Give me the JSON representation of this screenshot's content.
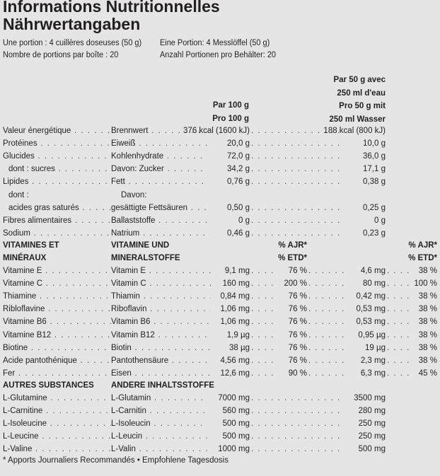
{
  "title_fr": "Informations Nutritionnelles",
  "title_de": "Nährwertangaben",
  "serving": {
    "fr_portion": "Une portion : 4 cuillères doseuses (50 g)",
    "de_portion": "Eine Portion: 4 Messlöffel (50 g)",
    "fr_count": "Nombre de portions par boîte : 20",
    "de_count": "Anzahl Portionen pro Behälter: 20"
  },
  "headers": {
    "per100": [
      "Par 100 g",
      "Pro 100 g"
    ],
    "per50": [
      "Par 50 g avec",
      "250 ml d'eau",
      "Pro 50 g mit",
      "250 ml Wasser"
    ]
  },
  "nutrients": [
    {
      "fr": "Valeur énergétique",
      "de": "Brennwert",
      "v100": "376 kcal (1600 kJ)",
      "v50": "188 kcal (800 kJ)"
    },
    {
      "fr": "Protéines",
      "de": "Eiweiß",
      "v100": "20,0 g",
      "v50": "10,0 g"
    },
    {
      "fr": "Glucides",
      "de": "Kohlenhydrate",
      "v100": "72,0 g",
      "v50": "36,0 g"
    },
    {
      "fr": "  dont : sucres",
      "de": "Davon: Zucker",
      "v100": "34,2 g",
      "v50": "17,1 g"
    },
    {
      "fr": "Lipides",
      "de": "Fett",
      "v100": "0,76 g",
      "v50": "0,38 g"
    },
    {
      "fr": "  dont :",
      "de": "Davon:",
      "v100": "",
      "v50": ""
    },
    {
      "fr": "  acides gras saturés",
      "de": "gesättigte Fettsäuren",
      "v100": "0,50 g",
      "v50": "0,25 g"
    },
    {
      "fr": "Fibres alimentaires",
      "de": "Ballaststoffe",
      "v100": "0 g",
      "v50": "0 g"
    },
    {
      "fr": "Sodium",
      "de": "Natrium",
      "v100": "0,46 g",
      "v50": "0,23 g"
    }
  ],
  "vit_header": {
    "fr": [
      "VITAMINES ET",
      "MINÉRAUX"
    ],
    "de": [
      "VITAMINE UND",
      "MINERALSTOFFE"
    ],
    "ajr": [
      "% AJR*",
      "% ETD*"
    ]
  },
  "vitamins": [
    {
      "fr": "Vitamine E",
      "de": "Vitamin E",
      "v100": "9,1 mg",
      "p100": "76 %",
      "v50": "4,6 mg",
      "p50": "38 %"
    },
    {
      "fr": "Vitamine C",
      "de": "Vitamin C",
      "v100": "160 mg",
      "p100": "200 %",
      "v50": "80 mg",
      "p50": "100 %"
    },
    {
      "fr": "Thiamine",
      "de": "Thiamin",
      "v100": "0,84 mg",
      "p100": "76 %",
      "v50": "0,42 mg",
      "p50": "38 %"
    },
    {
      "fr": "Ribloflavine",
      "de": "Riboflavin",
      "v100": "1,06 mg",
      "p100": "76 %",
      "v50": "0,53 mg",
      "p50": "38 %"
    },
    {
      "fr": "Vitamine B6",
      "de": "Vitamin B6",
      "v100": "1,06 mg",
      "p100": "76 %",
      "v50": "0,53 mg",
      "p50": "38 %"
    },
    {
      "fr": "Vitamine B12",
      "de": "Vitamin B12",
      "v100": "1,9 µg",
      "p100": "76 %",
      "v50": "0,95 µg",
      "p50": "38 %"
    },
    {
      "fr": "Biotine",
      "de": "Biotin",
      "v100": "38 µg",
      "p100": "76 %",
      "v50": "19 µg",
      "p50": "38 %"
    },
    {
      "fr": "Acide pantothénique",
      "de": "Pantothensäure",
      "v100": "4,56 mg",
      "p100": "76 %",
      "v50": "2,3 mg",
      "p50": "38 %"
    },
    {
      "fr": "Fer",
      "de": "Eisen",
      "v100": "12,6 mg",
      "p100": "90 %",
      "v50": "6,3 mg",
      "p50": "45 %"
    }
  ],
  "other_header": {
    "fr": "AUTRES SUBSTANCES",
    "de": "ANDERE INHALTSSTOFFE"
  },
  "others": [
    {
      "fr": "L-Glutamine",
      "de": "L-Glutamin",
      "v100": "7000 mg",
      "v50": "3500 mg"
    },
    {
      "fr": "L-Carnitine",
      "de": "L-Carnitin",
      "v100": "560 mg",
      "v50": "280 mg"
    },
    {
      "fr": "L-Isoleucine",
      "de": "L-Isoleucin",
      "v100": "500 mg",
      "v50": "250 mg"
    },
    {
      "fr": "L-Leucine",
      "de": "L-Leucin",
      "v100": "500 mg",
      "v50": "250 mg"
    },
    {
      "fr": "L-Valine",
      "de": "L-Valin",
      "v100": "1000 mg",
      "v50": "500 mg"
    }
  ],
  "footnote": "* Apports Journaliers Recommandés • Empfohlene Tagesdosis"
}
